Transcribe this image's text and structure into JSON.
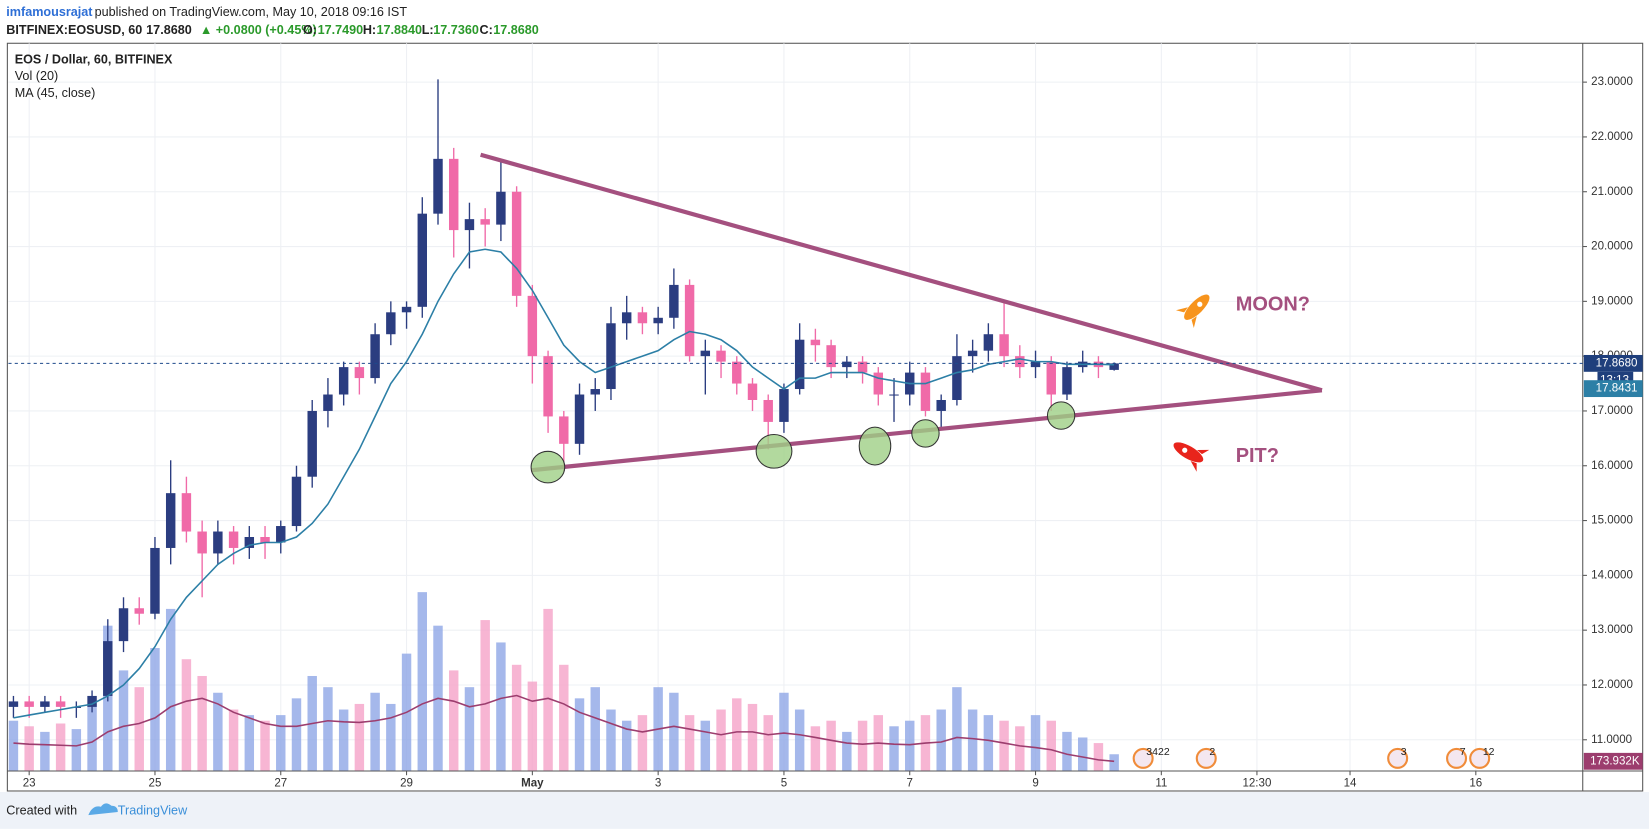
{
  "header": {
    "author": "imfamousrajat",
    "published": "published on TradingView.com, May 10, 2018 09:16 IST",
    "symbol": "BITFINEX:EOSUSD, 60",
    "last": "17.8680",
    "change": "▲ +0.0800 (+0.45%)",
    "o_label": "O:",
    "o": "17.7490",
    "h_label": "H:",
    "h": "17.8840",
    "l_label": "L:",
    "l": "17.7360",
    "c_label": "C:",
    "c": "17.8680"
  },
  "chart_data": {
    "type": "candlestick",
    "title": "EOS / Dollar, 60, BITFINEX",
    "indicators": [
      "Vol (20)",
      "MA (45, close)"
    ],
    "x": [
      -0.25,
      0,
      0.25,
      0.5,
      0.75,
      1,
      1.25,
      1.5,
      1.75,
      2,
      2.25,
      2.5,
      2.75,
      3,
      3.25,
      3.5,
      3.75,
      4,
      4.25,
      4.5,
      4.75,
      5,
      5.25,
      5.5,
      5.75,
      6,
      6.25,
      6.5,
      6.75,
      7,
      7.25,
      7.5,
      7.75,
      8,
      8.25,
      8.5,
      8.75,
      9,
      9.25,
      9.5,
      9.75,
      10,
      10.25,
      10.5,
      10.75,
      11,
      11.25,
      11.5,
      11.75,
      12,
      12.25,
      12.5,
      12.75,
      13,
      13.25,
      13.5,
      13.75,
      14,
      14.25,
      14.5,
      14.75,
      15,
      15.25,
      15.5,
      15.75,
      16,
      16.25,
      16.5,
      16.75,
      17,
      17.25
    ],
    "xlim": [
      -0.33,
      24.7
    ],
    "xticks": [
      {
        "value": 0,
        "label": "23"
      },
      {
        "value": 2,
        "label": "25"
      },
      {
        "value": 4,
        "label": "27"
      },
      {
        "value": 6,
        "label": "29"
      },
      {
        "value": 8,
        "label": "May"
      },
      {
        "value": 10,
        "label": "3"
      },
      {
        "value": 12,
        "label": "5"
      },
      {
        "value": 14,
        "label": "7"
      },
      {
        "value": 16,
        "label": "9"
      },
      {
        "value": 18,
        "label": "11"
      },
      {
        "value": 19.52,
        "label": "12:30"
      },
      {
        "value": 21,
        "label": "14"
      },
      {
        "value": 23,
        "label": "16"
      }
    ],
    "ylim": [
      10.43,
      23.69
    ],
    "yticks": [
      {
        "value": 11,
        "label": "11.0000"
      },
      {
        "value": 12,
        "label": "12.0000"
      },
      {
        "value": 13,
        "label": "13.0000"
      },
      {
        "value": 14,
        "label": "14.0000"
      },
      {
        "value": 15,
        "label": "15.0000"
      },
      {
        "value": 16,
        "label": "16.0000"
      },
      {
        "value": 17,
        "label": "17.0000"
      },
      {
        "value": 18,
        "label": "18.0000"
      },
      {
        "value": 19,
        "label": "19.0000"
      },
      {
        "value": 20,
        "label": "20.0000"
      },
      {
        "value": 21,
        "label": "21.0000"
      },
      {
        "value": 22,
        "label": "22.0000"
      },
      {
        "value": 23,
        "label": "23.0000"
      }
    ],
    "grid": true,
    "up_color": "#2b3d80",
    "down_color": "#f06aa8",
    "open": [
      11.6,
      11.7,
      11.6,
      11.7,
      11.6,
      11.6,
      11.8,
      12.8,
      13.4,
      13.3,
      14.5,
      15.5,
      14.8,
      14.4,
      14.8,
      14.5,
      14.7,
      14.6,
      14.9,
      15.8,
      17.0,
      17.3,
      17.8,
      17.6,
      18.4,
      18.8,
      18.9,
      20.6,
      21.6,
      20.3,
      20.5,
      20.4,
      21.0,
      19.1,
      18.0,
      16.9,
      16.4,
      17.3,
      17.4,
      18.6,
      18.8,
      18.6,
      18.7,
      19.3,
      18.0,
      18.1,
      17.9,
      17.5,
      17.2,
      16.8,
      17.4,
      18.3,
      18.2,
      17.8,
      17.9,
      17.7,
      17.3,
      17.3,
      17.7,
      17.0,
      17.2,
      18.0,
      18.1,
      18.4,
      18.0,
      17.8,
      17.9,
      17.3,
      17.8,
      17.9,
      17.749
    ],
    "high": [
      11.8,
      11.8,
      11.8,
      11.8,
      11.7,
      11.9,
      13.2,
      13.6,
      13.6,
      14.7,
      16.1,
      15.8,
      15.0,
      15.0,
      14.9,
      14.9,
      14.9,
      15.0,
      16.0,
      17.2,
      17.6,
      17.9,
      17.9,
      18.6,
      19.0,
      19.0,
      20.9,
      23.05,
      21.8,
      20.8,
      20.7,
      21.6,
      21.1,
      19.3,
      18.1,
      17.0,
      17.5,
      17.6,
      18.9,
      19.1,
      18.9,
      18.9,
      19.6,
      19.4,
      18.3,
      18.2,
      18.0,
      17.6,
      17.3,
      17.5,
      18.6,
      18.5,
      18.3,
      18.0,
      18.0,
      17.8,
      17.6,
      17.9,
      17.8,
      17.3,
      18.4,
      18.3,
      18.6,
      19.0,
      18.2,
      18.1,
      18.0,
      17.9,
      18.1,
      18.0,
      17.884
    ],
    "low": [
      11.4,
      11.4,
      11.5,
      11.4,
      11.4,
      11.5,
      11.7,
      12.6,
      13.1,
      13.2,
      14.2,
      14.6,
      13.6,
      14.2,
      14.2,
      14.3,
      14.3,
      14.4,
      14.8,
      15.6,
      16.7,
      17.1,
      17.3,
      17.5,
      18.2,
      18.5,
      18.7,
      20.4,
      19.8,
      19.6,
      20.0,
      20.1,
      18.9,
      17.5,
      16.6,
      15.9,
      16.2,
      17.0,
      17.2,
      18.3,
      18.4,
      18.4,
      18.5,
      17.9,
      17.3,
      17.6,
      17.3,
      17.0,
      16.3,
      16.6,
      17.3,
      17.9,
      17.6,
      17.6,
      17.5,
      17.1,
      16.8,
      17.1,
      16.9,
      16.7,
      17.1,
      17.7,
      17.9,
      17.8,
      17.6,
      17.6,
      17.0,
      17.2,
      17.7,
      17.6,
      17.736
    ],
    "close": [
      11.7,
      11.6,
      11.7,
      11.6,
      11.6,
      11.8,
      12.8,
      13.4,
      13.3,
      14.5,
      15.5,
      14.8,
      14.4,
      14.8,
      14.5,
      14.7,
      14.6,
      14.9,
      15.8,
      17.0,
      17.3,
      17.8,
      17.6,
      18.4,
      18.8,
      18.9,
      20.6,
      21.6,
      20.3,
      20.5,
      20.4,
      21.0,
      19.1,
      18.0,
      16.9,
      16.4,
      17.3,
      17.4,
      18.6,
      18.8,
      18.6,
      18.7,
      19.3,
      18.0,
      18.1,
      17.9,
      17.5,
      17.2,
      16.8,
      17.4,
      18.3,
      18.2,
      17.8,
      17.9,
      17.7,
      17.3,
      17.3,
      17.7,
      17.0,
      17.2,
      18.0,
      18.1,
      18.4,
      18.0,
      17.8,
      17.9,
      17.3,
      17.8,
      17.9,
      17.8,
      17.868
    ],
    "volume": {
      "vlim": [
        0,
        13000000
      ],
      "up_color": "#8ea6e6",
      "down_color": "#f5a2c8",
      "values": [
        900000,
        800000,
        700000,
        850000,
        750000,
        1200000,
        2600000,
        1800000,
        1500000,
        2200000,
        2900000,
        2000000,
        1700000,
        1400000,
        1100000,
        1000000,
        900000,
        1000000,
        1300000,
        1700000,
        1500000,
        1100000,
        1200000,
        1400000,
        1200000,
        2100000,
        3200000,
        2600000,
        1800000,
        1500000,
        2700000,
        2300000,
        1900000,
        1600000,
        2900000,
        1900000,
        1300000,
        1500000,
        1100000,
        900000,
        1000000,
        1500000,
        1400000,
        1000000,
        900000,
        1100000,
        1300000,
        1200000,
        1000000,
        1400000,
        1100000,
        800000,
        900000,
        700000,
        900000,
        1000000,
        800000,
        900000,
        1000000,
        1100000,
        1500000,
        1100000,
        1000000,
        900000,
        800000,
        1000000,
        900000,
        700000,
        600000,
        500000,
        300000
      ]
    },
    "vol_ma": {
      "color": "#9c3d6e",
      "label": {
        "value": 173932,
        "label": "173.932K"
      },
      "values": [
        500000,
        480000,
        470000,
        460000,
        450000,
        520000,
        700000,
        800000,
        850000,
        950000,
        1150000,
        1250000,
        1300000,
        1200000,
        1050000,
        950000,
        850000,
        800000,
        800000,
        850000,
        900000,
        880000,
        870000,
        900000,
        950000,
        1050000,
        1200000,
        1300000,
        1250000,
        1150000,
        1200000,
        1300000,
        1350000,
        1250000,
        1300000,
        1200000,
        1050000,
        950000,
        850000,
        750000,
        700000,
        750000,
        800000,
        750000,
        700000,
        650000,
        700000,
        700000,
        650000,
        680000,
        650000,
        600000,
        550000,
        500000,
        480000,
        500000,
        480000,
        470000,
        500000,
        520000,
        600000,
        580000,
        550000,
        500000,
        450000,
        420000,
        380000,
        300000,
        250000,
        200000,
        173932
      ]
    },
    "ma": {
      "color": "#2c7fa6",
      "label": {
        "value": 17.8431,
        "label": "17.8431"
      },
      "values": [
        11.4,
        11.45,
        11.5,
        11.55,
        11.6,
        11.65,
        11.8,
        12.0,
        12.3,
        12.7,
        13.2,
        13.6,
        13.9,
        14.2,
        14.4,
        14.55,
        14.6,
        14.6,
        14.7,
        14.95,
        15.3,
        15.8,
        16.3,
        16.9,
        17.5,
        17.9,
        18.4,
        19.0,
        19.5,
        19.9,
        19.95,
        19.9,
        19.6,
        19.2,
        18.7,
        18.2,
        17.9,
        17.7,
        17.8,
        17.9,
        18.0,
        18.1,
        18.3,
        18.45,
        18.4,
        18.3,
        18.1,
        17.8,
        17.6,
        17.4,
        17.6,
        17.6,
        17.7,
        17.7,
        17.7,
        17.6,
        17.55,
        17.5,
        17.5,
        17.6,
        17.7,
        17.75,
        17.85,
        17.9,
        17.95,
        17.9,
        17.9,
        17.85,
        17.85,
        17.85,
        17.8431
      ]
    },
    "last_price": {
      "value": 17.868,
      "label": "17.8680"
    },
    "countdown": "13:13",
    "annotations": [
      "MOON?",
      "PIT?"
    ],
    "events": [
      "3422",
      "2",
      "3",
      "7",
      "12"
    ]
  },
  "footer": {
    "created": "Created with",
    "brand": "TradingView"
  }
}
